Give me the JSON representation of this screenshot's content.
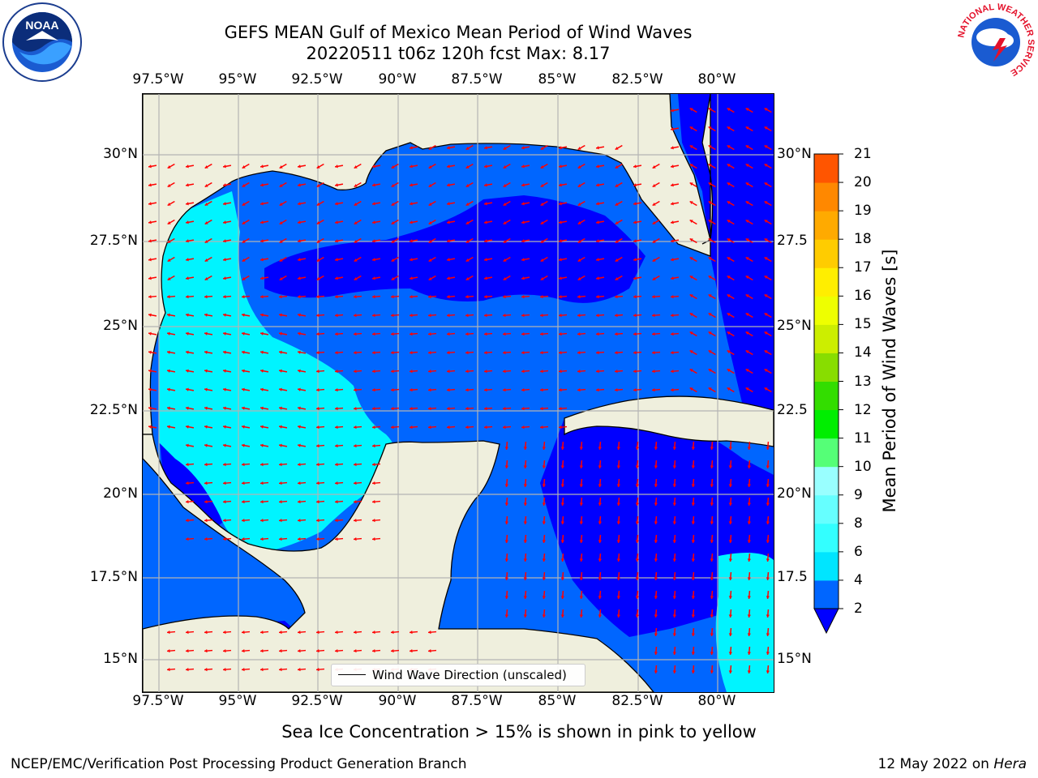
{
  "title_line1": "GEFS MEAN Gulf of Mexico Mean Period of Wind Waves",
  "title_line2": "20220511 t06z 120h fcst   Max: 8.17",
  "lon_labels": [
    "97.5°W",
    "95°W",
    "92.5°W",
    "90°W",
    "87.5°W",
    "85°W",
    "82.5°W",
    "80°W"
  ],
  "lat_labels_left": [
    "30°N",
    "27.5°N",
    "25°N",
    "22.5°N",
    "20°N",
    "17.5°N",
    "15°N"
  ],
  "lat_labels_right": [
    "30°N",
    "27.5",
    "25°N",
    "22.5",
    "20°N",
    "17.5",
    "15°N"
  ],
  "legend_label": "Wind Wave Direction (unscaled)",
  "colorbar": {
    "label": "Mean Period of Wind Waves [s]",
    "ticks": [
      "2",
      "4",
      "6",
      "8",
      "9",
      "10",
      "11",
      "12",
      "13",
      "14",
      "15",
      "16",
      "17",
      "18",
      "19",
      "20",
      "21"
    ],
    "colors": [
      "#0066ff",
      "#00e5ff",
      "#33ffff",
      "#66ffff",
      "#99ffff",
      "#55ff77",
      "#00ee00",
      "#33dd00",
      "#88dd00",
      "#ccee00",
      "#eeff00",
      "#ffee00",
      "#ffcc00",
      "#ffaa00",
      "#ff8800",
      "#ff5500",
      "#ff2200",
      "#ff0000"
    ],
    "under_color": "#0000ff"
  },
  "note": "Sea Ice Concentration > 15% is shown in pink to yellow",
  "footer_left": "NCEP/EMC/Verification Post Processing Product Generation Branch",
  "footer_right_text": "12 May 2022 on ",
  "footer_right_host": "Hera",
  "logos": {
    "left": "NOAA",
    "right_ring": "NATIONAL WEATHER SERVICE"
  },
  "colors": {
    "land": "#efefdd",
    "arrow": "#ff0000",
    "grid": "#b4b4b4",
    "band_2_4": "#0066ff",
    "band_4_6": "#00e5ff",
    "band_lt2": "#0000ff"
  }
}
